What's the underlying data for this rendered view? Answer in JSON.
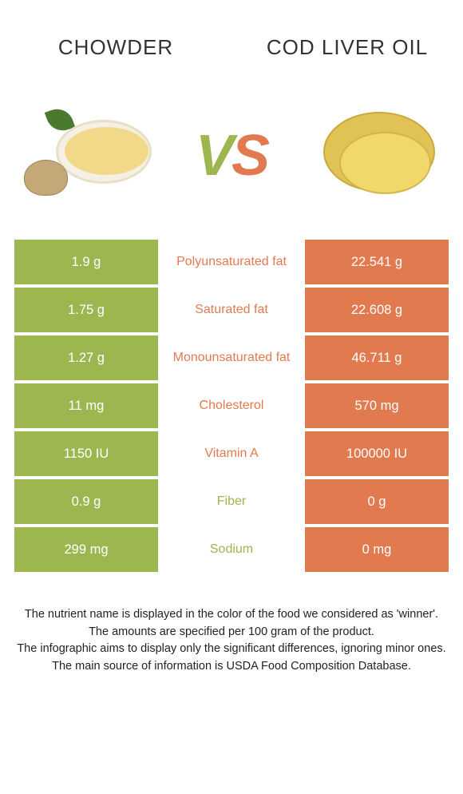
{
  "header": {
    "left": "CHOWDER",
    "right": "COD LIVER OIL"
  },
  "vs": {
    "v": "V",
    "s": "S"
  },
  "colors": {
    "left": "#9cb650",
    "right": "#e27a50",
    "text_dark": "#333333"
  },
  "rows": [
    {
      "left": "1.9 g",
      "mid": "Polyunsaturated fat",
      "right": "22.541 g",
      "winner": "right"
    },
    {
      "left": "1.75 g",
      "mid": "Saturated fat",
      "right": "22.608 g",
      "winner": "right"
    },
    {
      "left": "1.27 g",
      "mid": "Monounsaturated fat",
      "right": "46.711 g",
      "winner": "right"
    },
    {
      "left": "11 mg",
      "mid": "Cholesterol",
      "right": "570 mg",
      "winner": "right"
    },
    {
      "left": "1150 IU",
      "mid": "Vitamin A",
      "right": "100000 IU",
      "winner": "right"
    },
    {
      "left": "0.9 g",
      "mid": "Fiber",
      "right": "0 g",
      "winner": "left"
    },
    {
      "left": "299 mg",
      "mid": "Sodium",
      "right": "0 mg",
      "winner": "left"
    }
  ],
  "notes": [
    "The nutrient name is displayed in the color of the food we considered as 'winner'.",
    "The amounts are specified per 100 gram of the product.",
    "The infographic aims to display only the significant differences, ignoring minor ones.",
    "The main source of information is USDA Food Composition Database."
  ]
}
